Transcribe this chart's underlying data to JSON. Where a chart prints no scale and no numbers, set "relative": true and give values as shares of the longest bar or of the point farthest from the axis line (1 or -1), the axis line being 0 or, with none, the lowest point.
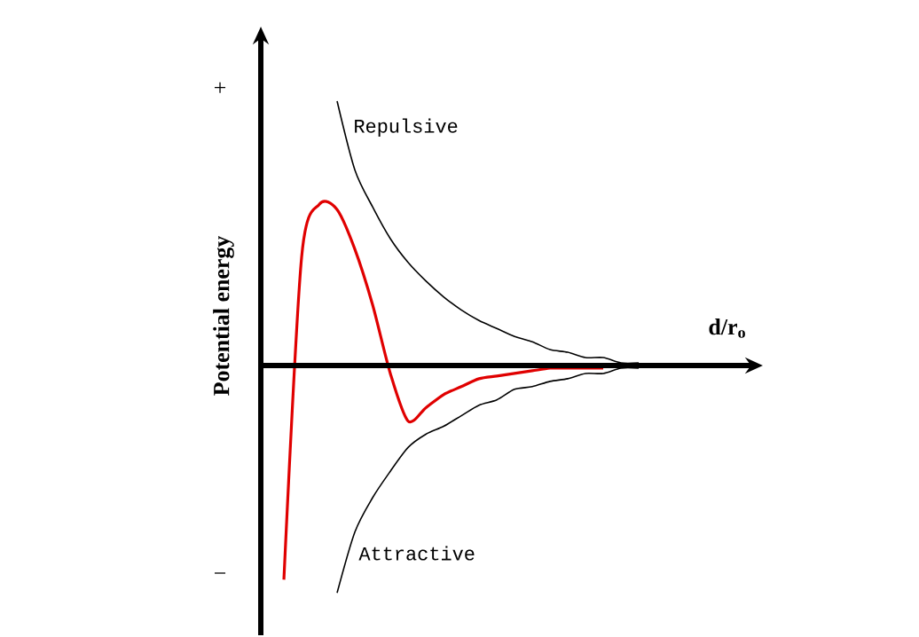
{
  "chart_data": {
    "type": "line",
    "relative": true,
    "xlabel": "d/r$_{o}$",
    "ylabel": "Potential energy",
    "annotations": [
      "+",
      "−"
    ],
    "categories": [
      null,
      null,
      null,
      null,
      null,
      null,
      null,
      null,
      null,
      null,
      null,
      null,
      null,
      null,
      null,
      null,
      null,
      null,
      null,
      null,
      null
    ],
    "series": [
      {
        "color": "#e00000",
        "values": [
          -0.81,
          0.41,
          0.61,
          0.59,
          0.44,
          0.23,
          -0.03,
          -0.21,
          -0.16,
          -0.11,
          -0.08,
          -0.05,
          -0.04,
          -0.03,
          -0.02,
          -0.01,
          -0.01,
          -0.01,
          -0.01,
          null,
          null
        ]
      },
      {
        "name": "Repulsive",
        "color": "#000000",
        "values": [
          null,
          null,
          null,
          1.0,
          0.74,
          0.6,
          0.48,
          0.39,
          0.32,
          0.26,
          0.21,
          0.17,
          0.14,
          0.11,
          0.09,
          0.06,
          0.05,
          0.03,
          0.03,
          0.01,
          0.01
        ]
      },
      {
        "name": "Attractive",
        "color": "#000000",
        "values": [
          null,
          null,
          null,
          -0.86,
          -0.63,
          -0.5,
          -0.4,
          -0.31,
          -0.26,
          -0.23,
          -0.19,
          -0.15,
          -0.13,
          -0.09,
          -0.08,
          -0.06,
          -0.05,
          -0.03,
          -0.03,
          -0.01,
          -0.01
        ]
      }
    ]
  }
}
